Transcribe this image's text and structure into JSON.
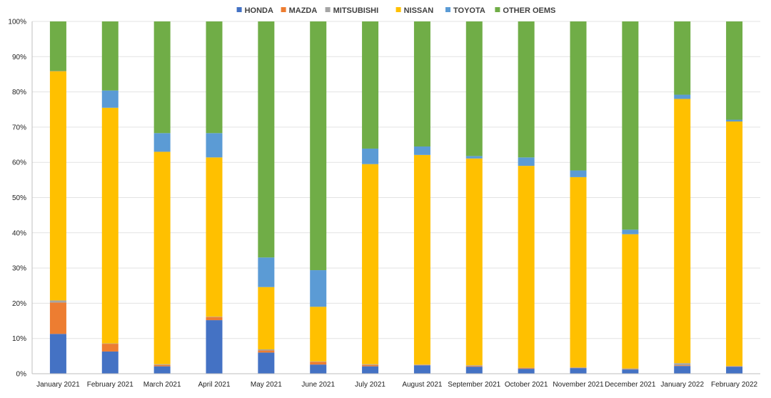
{
  "chart_data": {
    "type": "bar",
    "stacked": true,
    "grid": true,
    "legend_position": "top",
    "ylim": [
      0,
      100
    ],
    "y_ticks": [
      "0%",
      "10%",
      "20%",
      "30%",
      "40%",
      "50%",
      "60%",
      "70%",
      "80%",
      "90%",
      "100%"
    ],
    "categories": [
      "January 2021",
      "February 2021",
      "March 2021",
      "April 2021",
      "May 2021",
      "June 2021",
      "July 2021",
      "August 2021",
      "September 2021",
      "October 2021",
      "November 2021",
      "December 2021",
      "January 2022",
      "February 2022"
    ],
    "series": [
      {
        "name": "HONDA",
        "color": "#4472C4",
        "values": [
          11.3,
          6.3,
          2.1,
          15.2,
          6.0,
          2.6,
          2.1,
          2.4,
          2.0,
          1.4,
          1.6,
          1.2,
          2.2,
          2.0
        ]
      },
      {
        "name": "MAZDA",
        "color": "#ED7D31",
        "values": [
          8.9,
          2.2,
          0.4,
          0.9,
          0.6,
          0.8,
          0.4,
          0.1,
          0.2,
          0.2,
          0.1,
          0.1,
          0.2,
          0.1
        ]
      },
      {
        "name": "MITSUBISHI",
        "color": "#A5A5A5",
        "values": [
          0.6,
          0.1,
          0.2,
          0.1,
          0.3,
          0.1,
          0.2,
          0.1,
          0.2,
          0.1,
          0.1,
          0.2,
          0.6,
          0.1
        ]
      },
      {
        "name": "NISSAN",
        "color": "#FFC000",
        "values": [
          65.1,
          66.9,
          60.3,
          45.2,
          17.7,
          15.5,
          56.8,
          59.5,
          58.7,
          57.3,
          54.0,
          38.1,
          75.0,
          69.4
        ]
      },
      {
        "name": "TOYOTA",
        "color": "#5B9BD5",
        "values": [
          0.1,
          4.9,
          5.3,
          6.9,
          8.4,
          10.4,
          4.4,
          2.4,
          0.7,
          2.4,
          1.9,
          1.3,
          1.2,
          0.5
        ]
      },
      {
        "name": "OTHER OEMS",
        "color": "#70AD47",
        "values": [
          14.0,
          19.6,
          31.7,
          31.7,
          67.0,
          70.6,
          36.1,
          35.5,
          38.2,
          38.6,
          42.3,
          59.1,
          20.8,
          27.9
        ]
      }
    ]
  }
}
